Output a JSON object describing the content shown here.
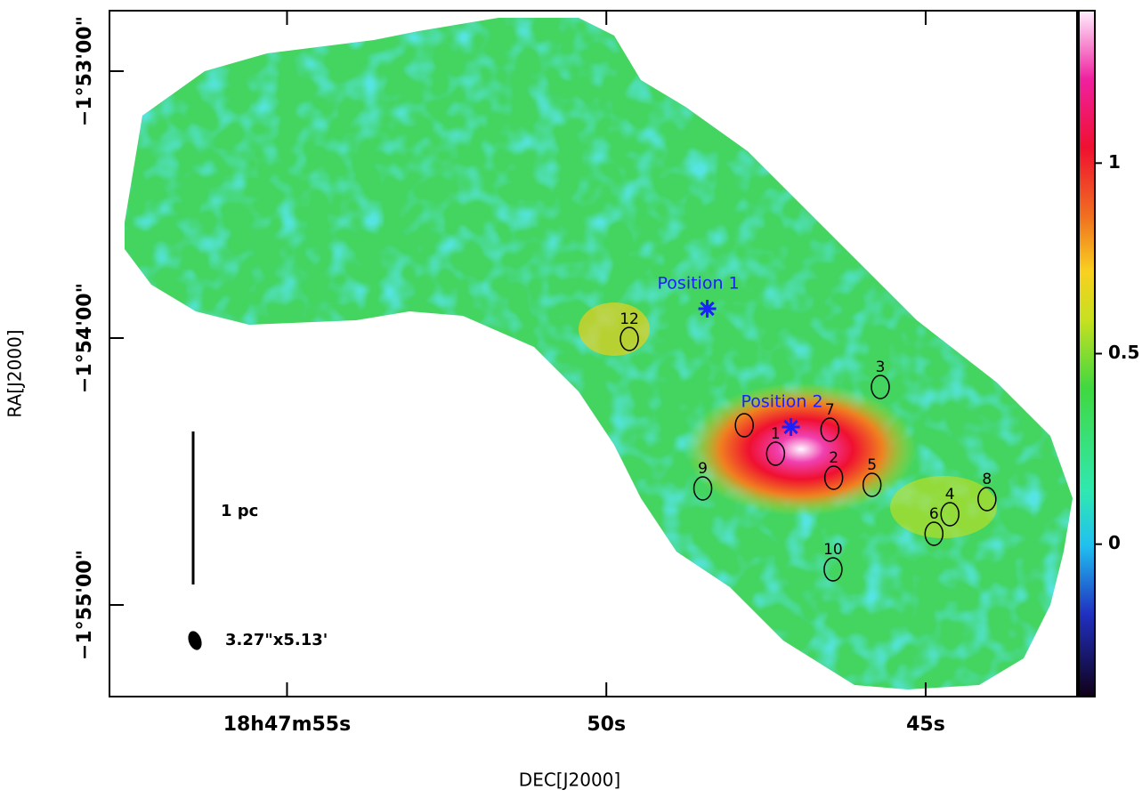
{
  "chart_data": {
    "type": "image",
    "xlabel": "DEC[J2000]",
    "ylabel": "RA[J2000]",
    "xlim": [
      57.78,
      42.63
    ],
    "xticks": [
      {
        "value": 55,
        "label": "18h47m55s"
      },
      {
        "value": 50,
        "label": "50s"
      },
      {
        "value": 45,
        "label": "45s"
      }
    ],
    "ylim": [
      3320.6,
      3166.4
    ],
    "yticks": [
      {
        "value": 3180,
        "label": "−1°53'00\""
      },
      {
        "value": 3240,
        "label": "−1°54'00\""
      },
      {
        "value": 3300,
        "label": "−1°55'00\""
      }
    ],
    "colorbar": {
      "lim": [
        -0.4,
        1.4
      ],
      "ticks": [
        0,
        0.5,
        1
      ]
    },
    "positions": [
      {
        "label": "Position 1",
        "x": 48.42,
        "y": 3233.4
      },
      {
        "label": "Position 2",
        "x": 47.11,
        "y": 3260.0
      }
    ],
    "sources": [
      {
        "label": "1",
        "x": 47.35,
        "y": 3266.0
      },
      {
        "label": "2",
        "x": 46.44,
        "y": 3271.4
      },
      {
        "label": "3",
        "x": 45.71,
        "y": 3251.0
      },
      {
        "label": "4",
        "x": 44.62,
        "y": 3279.6
      },
      {
        "label": "5",
        "x": 45.84,
        "y": 3273.0
      },
      {
        "label": "6",
        "x": 44.87,
        "y": 3284.0
      },
      {
        "label": "7",
        "x": 46.5,
        "y": 3260.6
      },
      {
        "label": "8",
        "x": 44.04,
        "y": 3276.2
      },
      {
        "label": "9",
        "x": 48.49,
        "y": 3273.8
      },
      {
        "label": "10",
        "x": 46.45,
        "y": 3292.0
      },
      {
        "label": null,
        "x": 47.84,
        "y": 3259.6
      },
      {
        "label": "12",
        "x": 49.64,
        "y": 3240.2
      }
    ],
    "scale_bar": "1 pc",
    "beam": "3.27\"x5.13'"
  }
}
